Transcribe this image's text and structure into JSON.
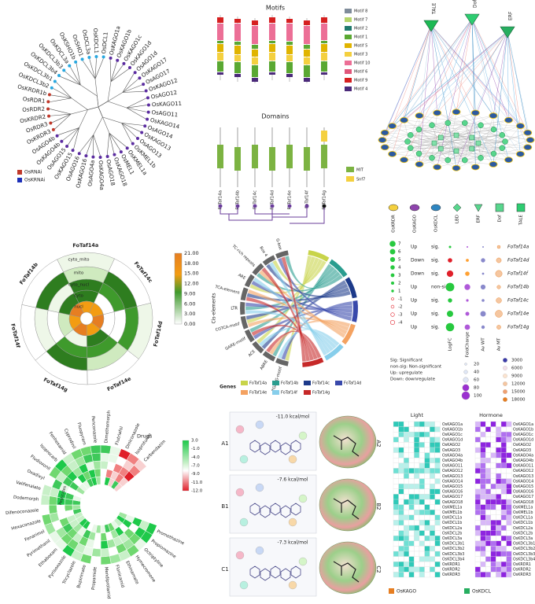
{
  "tree": {
    "leaves": [
      "OsKAGO1a",
      "OsKAGO1b",
      "OsKAGO1c",
      "OsKAGO1d",
      "OsAGO1d",
      "OsKAGO17",
      "OsAGO17",
      "OsKAGO12",
      "OsAGO12",
      "OsKAGO11",
      "OsAGO11",
      "OsKAGO14",
      "OsAGO14",
      "OsKAGO13",
      "OsAGO13",
      "OsKMEL1b",
      "OsKMEL1a",
      "OsMEL1",
      "OsKAGO18",
      "OsAGO18",
      "OsKAGO4a",
      "OsAGO4a",
      "OsKAGO16",
      "OsAGO16",
      "OsKAGO15",
      "OsAGO15",
      "OsKAGO4b",
      "OsAGO4b",
      "OsKRDR3",
      "OsRDR3",
      "OsKRDR2",
      "OsRDR2",
      "OsRDR1",
      "OsKRDR1b",
      "OsKDCL3b2",
      "OsKDCL3b1",
      "OsKDCL3b4",
      "OsKDCL3b3",
      "OsKDCL3a",
      "OsKSHO1b",
      "OsSHO1",
      "OsDCL3a",
      "OsKDCL1",
      "OsDCL1"
    ],
    "legend": [
      "OsRNAi",
      "OsKRNAi"
    ]
  },
  "motifs": {
    "title": "Motifs",
    "legend": [
      {
        "name": "Motif 8",
        "color": "#7f8c9a"
      },
      {
        "name": "Motif 7",
        "color": "#b5d56a"
      },
      {
        "name": "Motif 2",
        "color": "#1f7a6d"
      },
      {
        "name": "Motif 1",
        "color": "#5aa832"
      },
      {
        "name": "Motif 5",
        "color": "#e0b400"
      },
      {
        "name": "Motif 3",
        "color": "#f4d03f"
      },
      {
        "name": "Motif 10",
        "color": "#ec6f96"
      },
      {
        "name": "Motif 6",
        "color": "#e0567a"
      },
      {
        "name": "Motif 9",
        "color": "#d62020"
      },
      {
        "name": "Motif 4",
        "color": "#4b2a7a"
      }
    ],
    "domains_title": "Domains",
    "domain_legend": [
      {
        "name": "MIT",
        "color": "#7cb342"
      },
      {
        "name": "Snf7",
        "color": "#f4d03f"
      }
    ],
    "genes": [
      "FoTaf14a",
      "FoTaf14b",
      "FoTaf14c",
      "FoTaf14d",
      "FoTaf14e",
      "FoTaf14f",
      "FoTaf14g"
    ]
  },
  "network": {
    "top": [
      "TALE",
      "Dof",
      "ERF"
    ],
    "legend": [
      "OsKRDR",
      "OsKAGO",
      "OsKDCL",
      "LBD",
      "ERF",
      "Dof",
      "TALE"
    ]
  },
  "localization": {
    "genes": [
      "FoTaf14c",
      "FoTaf14d",
      "FoTaf14e",
      "FoTaf14g",
      "FoTaf14f",
      "FoTaf14b",
      "FoTaf14a"
    ],
    "rings": [
      "nucl",
      "cyto",
      "cyto_nucl",
      "mito",
      "cyto_mito"
    ],
    "scale": [
      "21.00",
      "18.00",
      "15.00",
      "12.00",
      "9.00",
      "6.00",
      "3.00",
      "0.00"
    ]
  },
  "cis_elements": {
    "axis_title": "Cis-elements",
    "elements": [
      "TGACG-motif",
      "ABRE",
      "ACE",
      "GARE-motif",
      "CGTCA-motif",
      "LTR",
      "TCA-element",
      "ARE",
      "TC-rich repeats",
      "Box 4",
      "G-box"
    ],
    "legend_title": "Genes",
    "genes": [
      {
        "name": "FoTaf14a",
        "color": "#c8d44a"
      },
      {
        "name": "FoTaf14b",
        "color": "#2a9d8f"
      },
      {
        "name": "FoTaf14c",
        "color": "#1d3a8a"
      },
      {
        "name": "FoTaf14d",
        "color": "#3949ab"
      },
      {
        "name": "FoTaf14e",
        "color": "#f4a261"
      },
      {
        "name": "FoTaf14f",
        "color": "#87ceeb"
      },
      {
        "name": "FoTaf14g",
        "color": "#c62828"
      }
    ]
  },
  "expression": {
    "scale": [
      "7",
      "6",
      "5",
      "4",
      "3",
      "2",
      "1",
      "-1",
      "-2",
      "-3",
      "-4"
    ],
    "rows": [
      {
        "regulation": "Up",
        "significance": "sig.",
        "gene": "FoTaf14a"
      },
      {
        "regulation": "Down",
        "significance": "sig.",
        "gene": "FoTaf14d"
      },
      {
        "regulation": "Down",
        "significance": "sig.",
        "gene": "FoTaf14f"
      },
      {
        "regulation": "Up",
        "significance": "non-sig.",
        "gene": "FoTaf14b"
      },
      {
        "regulation": "Up",
        "significance": "sig.",
        "gene": "FoTaf14c"
      },
      {
        "regulation": "Up",
        "significance": "sig.",
        "gene": "FoTaf14e"
      },
      {
        "regulation": "Up",
        "significance": "sig.",
        "gene": "FoTaf14g"
      }
    ],
    "columns": [
      "LogFC",
      "FoldChange",
      "Av WT",
      "Av MT"
    ],
    "notes": [
      "Sig: Significant",
      "non-sig: Non-significant",
      "Up: upregulate",
      "Down: downregulate"
    ],
    "size_legend": [
      "20",
      "40",
      "60",
      "80",
      "100"
    ],
    "color_legend": [
      "3000",
      "6000",
      "9000",
      "12000",
      "15000",
      "18000"
    ]
  },
  "drug_screen": {
    "compounds": [
      "Promethazine",
      "Propiomazine",
      "Octriptyline",
      "Hymecromone",
      "Ethinamate",
      "Flonicamid",
      "Mendiprolamid",
      "Propamide",
      "Bupirimate",
      "Tricyclazole",
      "Pyrisoxazole",
      "Ethaboxam",
      "Pyrimethanil",
      "Fenarimol",
      "Hexaconazole",
      "Difenoconazole",
      "Dodemorph",
      "Valifenalate",
      "Oxadixyl",
      "Fludioxonil",
      "Isoprocarb",
      "Fenhexamid",
      "Cyprodinil",
      "Fluopyram",
      "Penconazole",
      "Dimethomorph",
      "Flutriafol",
      "Diniconazole",
      "Isoproturon",
      "Carbendazim"
    ],
    "groups": [
      "Drugs",
      "Pesticides"
    ],
    "scale": [
      "3.0",
      "-1.0",
      "-4.0",
      "-7.0",
      "-9.0",
      "-11.0",
      "-12.0"
    ]
  },
  "docking": {
    "panels": [
      {
        "label": "A1",
        "energy": "-11.0 kcal/mol",
        "label2": "A2"
      },
      {
        "label": "B1",
        "energy": "-7.6 kcal/mol",
        "label2": "B2"
      },
      {
        "label": "C1",
        "energy": "-7.3 kcal/mol",
        "label2": "C2"
      }
    ]
  },
  "heatmap": {
    "light_title": "Light",
    "hormone_title": "Hormone",
    "rows": [
      "OsKAGO1a",
      "OsKAGO1b",
      "OsKAGO1c",
      "OsKAGO1d",
      "OsKAGO2",
      "OsKAGO3",
      "OsKAGO4a",
      "OsKAGO4b",
      "OsKAGO11",
      "OsKAGO12",
      "OsKAGO13",
      "OsKAGO14",
      "OsKAGO15",
      "OsKAGO16",
      "OsKAGO17",
      "OsKAGO18",
      "OsKMEL1a",
      "OsKMEL1b",
      "OsKDCL1a",
      "OsKDCL1b",
      "OsKDCL2a",
      "OsKDCL2b",
      "OsKDCL3a",
      "OsKDCL3b1",
      "OsKDCL3b2",
      "OsKDCL3b3",
      "OsKDCL3b4",
      "OsKRDR1",
      "OsKRDR2",
      "OsKRDR3"
    ],
    "legend": [
      "OsKAGO",
      "OsKDCL"
    ]
  }
}
